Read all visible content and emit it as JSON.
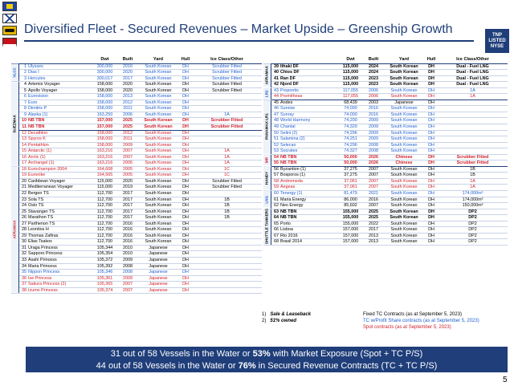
{
  "title": "Diversified Fleet - Secured Revenues – Market Upside – Greenship Growth",
  "logo": {
    "line1": "TNP",
    "line2": "LISTED",
    "line3": "NYSE"
  },
  "headers": {
    "dwt": "Dwt",
    "built": "Built",
    "yard": "Yard",
    "hull": "Hull",
    "ice": "Ice Class/Other"
  },
  "left": {
    "segments": [
      {
        "label": "VLCC",
        "rows": 3
      },
      {
        "label": "SUEZMAX",
        "rows": 14
      },
      {
        "label": "AFRAMAX",
        "rows": 21
      }
    ],
    "rows": [
      {
        "n": "1",
        "name": "Ulysses",
        "dwt": "300,000",
        "built": "2016",
        "yard": "South Korean",
        "hull": "DH",
        "ice": "Scrubber Fitted",
        "c": "tc"
      },
      {
        "n": "2",
        "name": "Dias I",
        "dwt": "300,000",
        "built": "2020",
        "yard": "South Korean",
        "hull": "DH",
        "ice": "Scrubber Fitted",
        "c": "tc"
      },
      {
        "n": "3",
        "name": "Hercules",
        "dwt": "300,017",
        "built": "2017",
        "yard": "South Korean",
        "hull": "DH",
        "ice": "Scrubber Fitted",
        "c": "tc"
      },
      {
        "n": "4",
        "name": "Artemis Voyager",
        "dwt": "158,000",
        "built": "2020",
        "yard": "South Korean",
        "hull": "DH",
        "ice": "Scrubber Fitted",
        "c": "spot"
      },
      {
        "n": "5",
        "name": "Apollo Voyager",
        "dwt": "158,000",
        "built": "2020",
        "yard": "South Korean",
        "hull": "DH",
        "ice": "Scrubber Fitted",
        "c": "spot"
      },
      {
        "n": "6",
        "name": "Eurovision",
        "dwt": "158,000",
        "built": "2013",
        "yard": "South Korean",
        "hull": "DH",
        "ice": "",
        "c": "tc"
      },
      {
        "n": "7",
        "name": "Euro",
        "dwt": "158,000",
        "built": "2012",
        "yard": "South Korean",
        "hull": "DH",
        "ice": "",
        "c": "tc"
      },
      {
        "n": "8",
        "name": "Dimitris P",
        "dwt": "158,000",
        "built": "2011",
        "yard": "South Korean",
        "hull": "DH",
        "ice": "",
        "c": "tc"
      },
      {
        "n": "9",
        "name": "Alaska (1)",
        "dwt": "163,250",
        "built": "2006",
        "yard": "South Korean",
        "hull": "DH",
        "ice": "1A",
        "c": "tc"
      },
      {
        "n": "10",
        "name": "NB TBN",
        "dwt": "157,000",
        "built": "2025",
        "yard": "South Korean",
        "hull": "DH",
        "ice": "Scrubber Fitted",
        "c": "tcps",
        "bold": true,
        "boxtop": true
      },
      {
        "n": "11",
        "name": "NB TBN",
        "dwt": "157,000",
        "built": "2025",
        "yard": "South Korean",
        "hull": "DH",
        "ice": "Scrubber Fitted",
        "c": "tcps",
        "bold": true,
        "boxbot": true
      },
      {
        "n": "12",
        "name": "Decathlon",
        "dwt": "158,000",
        "built": "2012",
        "yard": "South Korean",
        "hull": "DH",
        "ice": "",
        "c": "tcps"
      },
      {
        "n": "13",
        "name": "Spyros K",
        "dwt": "158,000",
        "built": "2011",
        "yard": "South Korean",
        "hull": "DH",
        "ice": "",
        "c": "tcps"
      },
      {
        "n": "14",
        "name": "Pentathlon",
        "dwt": "158,000",
        "built": "2009",
        "yard": "South Korean",
        "hull": "DH",
        "ice": "",
        "c": "tcps"
      },
      {
        "n": "15",
        "name": "Antarctic (1)",
        "dwt": "163,216",
        "built": "2007",
        "yard": "South Korean",
        "hull": "DH",
        "ice": "1A",
        "c": "tcps"
      },
      {
        "n": "16",
        "name": "Arctic (1)",
        "dwt": "163,216",
        "built": "2007",
        "yard": "South Korean",
        "hull": "DH",
        "ice": "1A",
        "c": "tcps"
      },
      {
        "n": "17",
        "name": "Archangel (1)",
        "dwt": "163,216",
        "built": "2006",
        "yard": "South Korean",
        "hull": "DH",
        "ice": "1A",
        "c": "tcps"
      },
      {
        "n": "18",
        "name": "Eurochampion 2004",
        "dwt": "164,608",
        "built": "2005",
        "yard": "South Korean",
        "hull": "DH",
        "ice": "1C",
        "c": "tcps"
      },
      {
        "n": "19",
        "name": "Euronike",
        "dwt": "164,565",
        "built": "2005",
        "yard": "South Korean",
        "hull": "DH",
        "ice": "1C",
        "c": "tcps"
      },
      {
        "n": "20",
        "name": "Caribbean Voyager",
        "dwt": "115,000",
        "built": "2020",
        "yard": "South Korean",
        "hull": "DH",
        "ice": "Scrubber Fitted",
        "c": "spot",
        "boxtop": true
      },
      {
        "n": "21",
        "name": "Mediterranean Voyager",
        "dwt": "115,000",
        "built": "2019",
        "yard": "South Korean",
        "hull": "DH",
        "ice": "Scrubber Fitted",
        "c": "spot"
      },
      {
        "n": "22",
        "name": "Bergen TS",
        "dwt": "112,700",
        "built": "2017",
        "yard": "South Korean",
        "hull": "DH",
        "ice": "",
        "c": "spot"
      },
      {
        "n": "23",
        "name": "Sola TS",
        "dwt": "112,700",
        "built": "2017",
        "yard": "South Korean",
        "hull": "DH",
        "ice": "1B",
        "c": "spot"
      },
      {
        "n": "24",
        "name": "Oslo TS",
        "dwt": "112,700",
        "built": "2017",
        "yard": "South Korean",
        "hull": "DH",
        "ice": "1B",
        "c": "spot"
      },
      {
        "n": "25",
        "name": "Stavanger TS",
        "dwt": "112,700",
        "built": "2017",
        "yard": "South Korean",
        "hull": "DH",
        "ice": "1B",
        "c": "spot"
      },
      {
        "n": "26",
        "name": "Marathon TS",
        "dwt": "112,700",
        "built": "2017",
        "yard": "South Korean",
        "hull": "DH",
        "ice": "1B",
        "c": "spot"
      },
      {
        "n": "27",
        "name": "Parthenon TS",
        "dwt": "112,700",
        "built": "2016",
        "yard": "South Korean",
        "hull": "DH",
        "ice": "",
        "c": "spot"
      },
      {
        "n": "28",
        "name": "Leontios H",
        "dwt": "112,700",
        "built": "2016",
        "yard": "South Korean",
        "hull": "DH",
        "ice": "",
        "c": "spot"
      },
      {
        "n": "29",
        "name": "Thomas Zafiras",
        "dwt": "112,700",
        "built": "2016",
        "yard": "South Korean",
        "hull": "DH",
        "ice": "",
        "c": "spot"
      },
      {
        "n": "30",
        "name": "Elias Tsakos",
        "dwt": "112,700",
        "built": "2016",
        "yard": "South Korean",
        "hull": "DH",
        "ice": "",
        "c": "spot"
      },
      {
        "n": "31",
        "name": "Uraga Princess",
        "dwt": "105,344",
        "built": "2010",
        "yard": "Japanese",
        "hull": "DH",
        "ice": "",
        "c": "spot"
      },
      {
        "n": "32",
        "name": "Sapporo Princess",
        "dwt": "105,354",
        "built": "2010",
        "yard": "Japanese",
        "hull": "DH",
        "ice": "",
        "c": "spot"
      },
      {
        "n": "33",
        "name": "Asahi Princess",
        "dwt": "105,372",
        "built": "2009",
        "yard": "Japanese",
        "hull": "DH",
        "ice": "",
        "c": "spot"
      },
      {
        "n": "34",
        "name": "Maria Princess",
        "dwt": "105,392",
        "built": "2008",
        "yard": "Japanese",
        "hull": "DH",
        "ice": "",
        "c": "spot"
      },
      {
        "n": "35",
        "name": "Nippon Princess",
        "dwt": "105,346",
        "built": "2008",
        "yard": "Japanese",
        "hull": "DH",
        "ice": "",
        "c": "tc"
      },
      {
        "n": "36",
        "name": "Ise Princess",
        "dwt": "105,361",
        "built": "2009",
        "yard": "Japanese",
        "hull": "DH",
        "ice": "",
        "c": "tcps"
      },
      {
        "n": "37",
        "name": "Sakura Princess (2)",
        "dwt": "105,365",
        "built": "2007",
        "yard": "Japanese",
        "hull": "DH",
        "ice": "",
        "c": "tcps"
      },
      {
        "n": "38",
        "name": "Izumo Princess",
        "dwt": "105,374",
        "built": "2007",
        "yard": "Japanese",
        "hull": "DH",
        "ice": "",
        "c": "tcps"
      }
    ]
  },
  "right": {
    "segments": [
      {
        "label": "AFRAMAX",
        "rows": 4
      },
      {
        "label": "LR2",
        "rows": 2
      },
      {
        "label": "PANAMAX LR1",
        "rows": 9
      },
      {
        "label": "MR",
        "rows": 2
      },
      {
        "label": "HANDY",
        "rows": 4
      },
      {
        "label": "LNG",
        "rows": 3
      },
      {
        "label": "SHUTTLE TANKERS",
        "rows": 6
      }
    ],
    "rows": [
      {
        "n": "39",
        "name": "Ithaki DF",
        "dwt": "115,000",
        "built": "2024",
        "yard": "South Korean",
        "hull": "DH",
        "ice": "Dual - Fuel LNG",
        "c": "spot",
        "bold": true
      },
      {
        "n": "40",
        "name": "Chios DF",
        "dwt": "115,000",
        "built": "2024",
        "yard": "South Korean",
        "hull": "DH",
        "ice": "Dual - Fuel LNG",
        "c": "spot",
        "bold": true
      },
      {
        "n": "41",
        "name": "Ran DF",
        "dwt": "115,000",
        "built": "2023",
        "yard": "South Korean",
        "hull": "DH",
        "ice": "Dual - Fuel LNG",
        "c": "spot",
        "bold": true
      },
      {
        "n": "42",
        "name": "Njord DF",
        "dwt": "115,000",
        "built": "2023",
        "yard": "South Korean",
        "hull": "DH",
        "ice": "Dual - Fuel LNG",
        "c": "spot",
        "bold": true
      },
      {
        "n": "43",
        "name": "Propontis",
        "dwt": "117,055",
        "built": "2006",
        "yard": "South Korean",
        "hull": "DH",
        "ice": "1A",
        "c": "tc",
        "boxtop": true
      },
      {
        "n": "44",
        "name": "Promitheas",
        "dwt": "117,055",
        "built": "2006",
        "yard": "South Korean",
        "hull": "DH",
        "ice": "1A",
        "c": "tcps",
        "boxbot": true
      },
      {
        "n": "45",
        "name": "Andes",
        "dwt": "68,439",
        "built": "2003",
        "yard": "Japanese",
        "hull": "DH",
        "ice": "",
        "c": "spot"
      },
      {
        "n": "46",
        "name": "Sunrise",
        "dwt": "74,000",
        "built": "2016",
        "yard": "South Korean",
        "hull": "DH",
        "ice": "",
        "c": "tc"
      },
      {
        "n": "47",
        "name": "Sunray",
        "dwt": "74,000",
        "built": "2016",
        "yard": "South Korean",
        "hull": "DH",
        "ice": "",
        "c": "tc"
      },
      {
        "n": "48",
        "name": "World Harmony",
        "dwt": "74,200",
        "built": "2009",
        "yard": "South Korean",
        "hull": "DH",
        "ice": "",
        "c": "tc"
      },
      {
        "n": "49",
        "name": "Chantal",
        "dwt": "74,329",
        "built": "2009",
        "yard": "South Korean",
        "hull": "DH",
        "ice": "",
        "c": "tc"
      },
      {
        "n": "50",
        "name": "Selini (2)",
        "dwt": "74,296",
        "built": "2009",
        "yard": "South Korean",
        "hull": "DH",
        "ice": "",
        "c": "tc"
      },
      {
        "n": "51",
        "name": "Salamina (2)",
        "dwt": "74,251",
        "built": "2009",
        "yard": "South Korean",
        "hull": "DH",
        "ice": "",
        "c": "tc"
      },
      {
        "n": "52",
        "name": "Selecao",
        "dwt": "74,296",
        "built": "2008",
        "yard": "South Korean",
        "hull": "DH",
        "ice": "",
        "c": "tc"
      },
      {
        "n": "53",
        "name": "Socrates",
        "dwt": "74,327",
        "built": "2008",
        "yard": "South Korean",
        "hull": "DH",
        "ice": "",
        "c": "tc"
      },
      {
        "n": "54",
        "name": "NB TBN",
        "dwt": "50,000",
        "built": "2026",
        "yard": "Chinese",
        "hull": "DH",
        "ice": "Scrubber Fitted",
        "c": "tcps",
        "bold": true,
        "boxtop": true
      },
      {
        "n": "55",
        "name": "NB TBN",
        "dwt": "50,000",
        "built": "2026",
        "yard": "Chinese",
        "hull": "DH",
        "ice": "Scrubber Fitted",
        "c": "tcps",
        "bold": true,
        "boxbot": true
      },
      {
        "n": "56",
        "name": "Byzantion (1)",
        "dwt": "37,275",
        "built": "2007",
        "yard": "South Korean",
        "hull": "DH",
        "ice": "1B",
        "c": "spot"
      },
      {
        "n": "57",
        "name": "Bosporos (1)",
        "dwt": "37,275",
        "built": "2007",
        "yard": "South Korean",
        "hull": "DH",
        "ice": "1B",
        "c": "spot"
      },
      {
        "n": "58",
        "name": "Andromeda",
        "dwt": "37,061",
        "built": "2007",
        "yard": "South Korean",
        "hull": "DH",
        "ice": "1A",
        "c": "tcps"
      },
      {
        "n": "59",
        "name": "Aegeas",
        "dwt": "37,061",
        "built": "2007",
        "yard": "South Korean",
        "hull": "DH",
        "ice": "1A",
        "c": "tcps"
      },
      {
        "n": "60",
        "name": "Tenergy (1)",
        "dwt": "81,479",
        "built": "2021",
        "yard": "South Korean",
        "hull": "DH",
        "ice": "174,000m³",
        "c": "tc",
        "boxtop": true
      },
      {
        "n": "61",
        "name": "Maria Energy",
        "dwt": "86,000",
        "built": "2016",
        "yard": "South Korean",
        "hull": "DH",
        "ice": "174,000m³",
        "c": "spot"
      },
      {
        "n": "62",
        "name": "Neo Energy",
        "dwt": "85,602",
        "built": "2007",
        "yard": "South Korean",
        "hull": "DH",
        "ice": "150,000m³",
        "c": "spot"
      },
      {
        "n": "63",
        "name": "NB TBN",
        "dwt": "155,000",
        "built": "2025",
        "yard": "South Korean",
        "hull": "DH",
        "ice": "DP2",
        "c": "spot",
        "bold": true,
        "boxtop": true
      },
      {
        "n": "64",
        "name": "NB TBN",
        "dwt": "155,000",
        "built": "2025",
        "yard": "South Korean",
        "hull": "DH",
        "ice": "DP2",
        "c": "spot",
        "bold": true
      },
      {
        "n": "65",
        "name": "Porto",
        "dwt": "155,000",
        "built": "2022",
        "yard": "South Korean",
        "hull": "DH",
        "ice": "DP2",
        "c": "spot"
      },
      {
        "n": "66",
        "name": "Lisboa",
        "dwt": "157,000",
        "built": "2017",
        "yard": "South Korean",
        "hull": "DH",
        "ice": "DP2",
        "c": "spot"
      },
      {
        "n": "67",
        "name": "Rio 2016",
        "dwt": "157,000",
        "built": "2013",
        "yard": "South Korean",
        "hull": "DH",
        "ice": "DP2",
        "c": "spot"
      },
      {
        "n": "68",
        "name": "Brasil 2014",
        "dwt": "157,000",
        "built": "2013",
        "yard": "South Korean",
        "hull": "DH",
        "ice": "DP2",
        "c": "spot"
      }
    ]
  },
  "notes": [
    {
      "n": "1)",
      "text": "Sale & Leaseback"
    },
    {
      "n": "2)",
      "text": "51% owned"
    }
  ],
  "legend": [
    {
      "text": "Fixed TC Contracts (as at September 5, 2023)",
      "color": "#000000"
    },
    {
      "text": "TC w/Profit Share contracts (as at September 5, 2023)",
      "color": "#1f5fd0"
    },
    {
      "text": "Spot contracts (as at September 5, 2023)",
      "color": "#d0202a"
    }
  ],
  "banner": {
    "line1_pre": "31 out of 58 Vessels in the Water or ",
    "line1_bold": "53%",
    "line1_post": " with Market Exposure (Spot + TC P/S)",
    "line2_pre": "44 out of 58 Vessels in the Water or ",
    "line2_bold": "76%",
    "line2_post": " in Secured Revenue Contracts (TC + TC P/S)"
  },
  "page_number": "5"
}
